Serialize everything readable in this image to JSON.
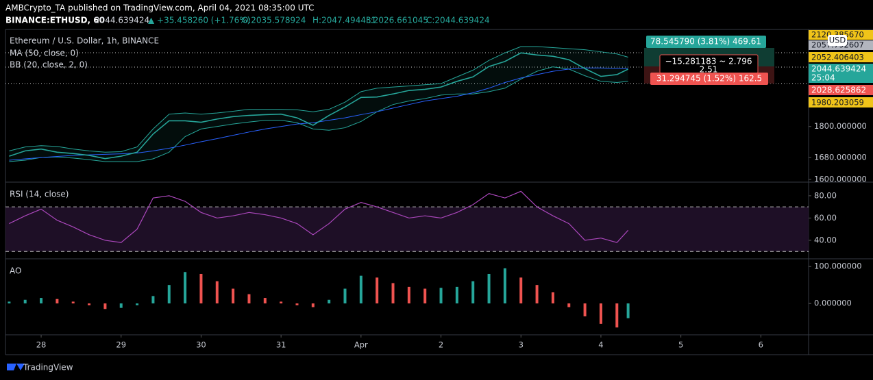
{
  "header": {
    "published": "AMBCrypto_TA published on TradingView.com, April 04, 2021 08:35:00 UTC",
    "symbol": "BINANCE:ETHUSD, 60",
    "last": "2044.639424",
    "change": "▲ +35.458260 (+1.76%)",
    "open": "O:2035.578924",
    "high": "H:2047.494431",
    "low": "L:2026.661045",
    "close": "C:2044.639424"
  },
  "legend": {
    "title": "Ethereum / U.S. Dollar, 1h, BINANCE",
    "ma": "MA (50, close, 0)",
    "bb": "BB (20, close, 2, 0)",
    "rsi": "RSI (14, close)",
    "ao": "AO"
  },
  "price_labels": {
    "currency": "USD",
    "a": "2120.385670",
    "b": "2057.792607",
    "c": "2052.406403",
    "last": "2044.639424",
    "timer": "25:04",
    "d": "2028.625862",
    "e": "1980.203059"
  },
  "measure": {
    "up": "78.545790 (3.81%) 469.61",
    "range": "−15.281183 ~ 2.796",
    "range2": "2.51",
    "down": "31.294745 (1.52%) 162.5"
  },
  "footer": "TradingView",
  "chart_data": {
    "type": "line",
    "log_scale": true,
    "x": [
      -0.4,
      -0.2,
      0,
      0.2,
      0.4,
      0.6,
      0.8,
      1,
      1.2,
      1.4,
      1.6,
      1.8,
      2,
      2.2,
      2.4,
      2.6,
      2.8,
      3,
      3.2,
      3.4,
      3.6,
      3.8,
      4,
      4.2,
      4.4,
      4.6,
      4.8,
      5,
      5.2,
      5.4,
      5.6,
      5.8,
      6,
      6.2,
      6.4,
      6.6,
      6.8,
      7,
      7.2,
      7.34
    ],
    "xlim": [
      -0.446,
      9.597
    ],
    "xticks": [
      {
        "value": 0,
        "label": "28"
      },
      {
        "value": 1,
        "label": "29"
      },
      {
        "value": 2,
        "label": "30"
      },
      {
        "value": 3,
        "label": "31"
      },
      {
        "value": 4,
        "label": "Apr"
      },
      {
        "value": 5,
        "label": "2"
      },
      {
        "value": 6,
        "label": "3"
      },
      {
        "value": 7,
        "label": "4"
      },
      {
        "value": 8,
        "label": "5"
      },
      {
        "value": 9,
        "label": "6"
      }
    ],
    "ylim": [
      1593,
      2230
    ],
    "yticks": [
      {
        "value": 1800,
        "label": "1800.000000"
      },
      {
        "value": 1680,
        "label": "1680.000000"
      },
      {
        "value": 1600,
        "label": "1600.000000"
      }
    ],
    "series": [
      {
        "name": "close",
        "color": "#26a69a",
        "values": [
          1685,
          1705,
          1712,
          1700,
          1695,
          1688,
          1676,
          1685,
          1700,
          1770,
          1823,
          1823,
          1817,
          1830,
          1840,
          1845,
          1848,
          1850,
          1835,
          1805,
          1845,
          1880,
          1920,
          1922,
          1935,
          1950,
          1955,
          1965,
          1990,
          2010,
          2057,
          2080,
          2120,
          2110,
          2104,
          2088,
          2047,
          2012,
          2020,
          2044.64
        ]
      },
      {
        "name": "MA",
        "color": "#2962ff",
        "values": [
          1670,
          1675,
          1680,
          1684,
          1688,
          1690,
          1692,
          1694,
          1697,
          1705,
          1715,
          1727,
          1740,
          1752,
          1765,
          1778,
          1790,
          1800,
          1810,
          1815,
          1825,
          1835,
          1848,
          1860,
          1875,
          1890,
          1905,
          1915,
          1925,
          1940,
          1960,
          1985,
          2005,
          2020,
          2035,
          2045,
          2050,
          2050,
          2048,
          2047
        ]
      },
      {
        "name": "BB upper",
        "color": "#26a69a",
        "values": [
          1705,
          1720,
          1725,
          1722,
          1712,
          1705,
          1700,
          1702,
          1720,
          1790,
          1850,
          1855,
          1850,
          1855,
          1862,
          1870,
          1870,
          1870,
          1868,
          1860,
          1870,
          1900,
          1945,
          1960,
          1965,
          1970,
          1975,
          1980,
          2010,
          2040,
          2085,
          2120,
          2150,
          2150,
          2145,
          2140,
          2135,
          2125,
          2115,
          2100
        ]
      },
      {
        "name": "BB lower",
        "color": "#26a69a",
        "values": [
          1665,
          1670,
          1680,
          1682,
          1678,
          1672,
          1665,
          1665,
          1665,
          1675,
          1700,
          1760,
          1790,
          1800,
          1810,
          1818,
          1825,
          1825,
          1815,
          1790,
          1785,
          1795,
          1820,
          1860,
          1890,
          1905,
          1915,
          1930,
          1935,
          1935,
          1945,
          1960,
          2000,
          2035,
          2055,
          2045,
          2015,
          1990,
          1985,
          1990
        ]
      }
    ],
    "rsi": {
      "color": "#ab47bc",
      "ylim": [
        24,
        91
      ],
      "yticks": [
        {
          "value": 80,
          "label": "80.00"
        },
        {
          "value": 60,
          "label": "60.00"
        },
        {
          "value": 40,
          "label": "40.00"
        }
      ],
      "bands": [
        70,
        30
      ],
      "values": [
        55,
        62,
        68,
        58,
        52,
        45,
        40,
        38,
        50,
        78,
        80,
        75,
        65,
        60,
        62,
        65,
        63,
        60,
        55,
        45,
        55,
        68,
        74,
        70,
        65,
        60,
        62,
        60,
        65,
        72,
        82,
        78,
        84,
        70,
        62,
        55,
        40,
        42,
        38,
        49
      ]
    },
    "ao": {
      "ylim": [
        -83,
        117
      ],
      "yticks": [
        {
          "value": 100,
          "label": "100.000000"
        },
        {
          "value": 0,
          "label": "0.000000"
        }
      ],
      "values": [
        5,
        10,
        15,
        12,
        5,
        -5,
        -15,
        -12,
        -5,
        20,
        50,
        85,
        80,
        60,
        40,
        25,
        15,
        5,
        -5,
        -10,
        10,
        40,
        75,
        70,
        55,
        45,
        40,
        42,
        45,
        60,
        80,
        95,
        70,
        50,
        30,
        -10,
        -35,
        -55,
        -65,
        -40
      ]
    }
  }
}
